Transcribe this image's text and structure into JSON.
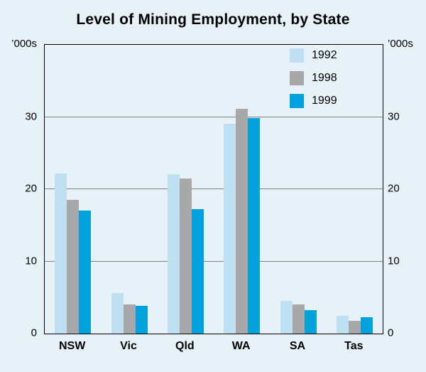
{
  "page": {
    "background": "#E6F1F8"
  },
  "chart_data": {
    "type": "bar",
    "title": "Level of Mining Employment, by State",
    "ylabel_left": "’000s",
    "ylabel_right": "’000s",
    "categories": [
      "NSW",
      "Vic",
      "Qld",
      "WA",
      "SA",
      "Tas"
    ],
    "series": [
      {
        "name": "1992",
        "color": "#BEE0F2",
        "values": [
          22.2,
          5.6,
          22.1,
          29.1,
          4.5,
          2.5
        ]
      },
      {
        "name": "1998",
        "color": "#A8A8A8",
        "values": [
          18.5,
          4.0,
          21.5,
          31.1,
          4.0,
          1.8
        ]
      },
      {
        "name": "1999",
        "color": "#00A1DC",
        "values": [
          17.0,
          3.8,
          17.2,
          29.9,
          3.3,
          2.3
        ]
      }
    ],
    "ylim": [
      0,
      40
    ],
    "yticks": [
      0,
      10,
      20,
      30
    ],
    "grid": true,
    "legend_position": "top-right-inside"
  }
}
